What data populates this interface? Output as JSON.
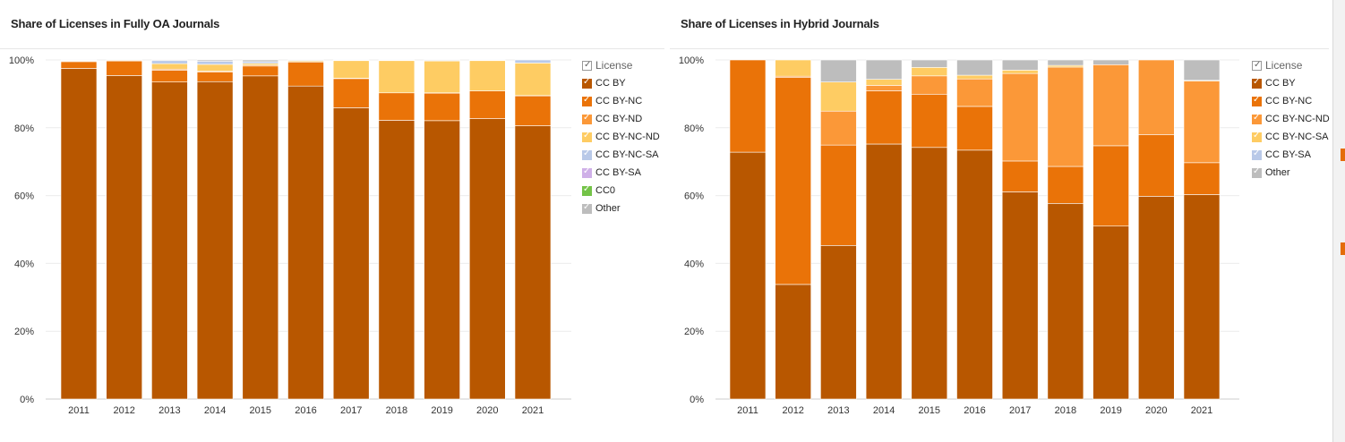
{
  "chart_data": [
    {
      "type": "bar",
      "stacked": true,
      "title": "Share of Licenses in Fully OA Journals",
      "categories": [
        "2011",
        "2012",
        "2013",
        "2014",
        "2015",
        "2016",
        "2017",
        "2018",
        "2019",
        "2020",
        "2021"
      ],
      "ylim": [
        0,
        100
      ],
      "yticks": [
        "0%",
        "20%",
        "40%",
        "60%",
        "80%",
        "100%"
      ],
      "grid": true,
      "legend_position": "right",
      "legend_title": "License",
      "series": [
        {
          "name": "CC BY",
          "color": "#b85700",
          "values": [
            97.5,
            95.4,
            93.5,
            93.6,
            95.3,
            92.3,
            85.9,
            82.2,
            82.1,
            82.7,
            80.6
          ]
        },
        {
          "name": "CC BY-NC",
          "color": "#ea7308",
          "values": [
            2.0,
            4.3,
            3.5,
            2.8,
            2.9,
            7.1,
            8.6,
            8.1,
            8.1,
            8.2,
            8.8
          ]
        },
        {
          "name": "CC BY-ND",
          "color": "#fb9838",
          "values": [
            0.2,
            0.2,
            0.3,
            0.3,
            0.3,
            0.1,
            0.1,
            0.0,
            0.1,
            0.0,
            0.1
          ]
        },
        {
          "name": "CC BY-NC-ND",
          "color": "#fecc63",
          "values": [
            0.1,
            0.0,
            1.6,
            2.0,
            0.5,
            0.3,
            5.2,
            9.5,
            9.4,
            8.9,
            9.6
          ]
        },
        {
          "name": "CC BY-NC-SA",
          "color": "#b9c9e8",
          "values": [
            0.1,
            0.0,
            0.9,
            0.9,
            0.5,
            0.0,
            0.1,
            0.1,
            0.1,
            0.1,
            0.9
          ]
        },
        {
          "name": "CC BY-SA",
          "color": "#cfb0e8",
          "values": [
            0.0,
            0.0,
            0.0,
            0.0,
            0.0,
            0.0,
            0.0,
            0.0,
            0.0,
            0.0,
            0.0
          ]
        },
        {
          "name": "CC0",
          "color": "#74c348",
          "values": [
            0.0,
            0.0,
            0.0,
            0.0,
            0.0,
            0.0,
            0.0,
            0.0,
            0.0,
            0.0,
            0.0
          ]
        },
        {
          "name": "Other",
          "color": "#bdbdbd",
          "values": [
            0.1,
            0.1,
            0.2,
            0.4,
            0.5,
            0.2,
            0.1,
            0.1,
            0.2,
            0.1,
            0.0
          ]
        }
      ]
    },
    {
      "type": "bar",
      "stacked": true,
      "title": "Share of Licenses in Hybrid Journals",
      "categories": [
        "2011",
        "2012",
        "2013",
        "2014",
        "2015",
        "2016",
        "2017",
        "2018",
        "2019",
        "2020",
        "2021"
      ],
      "ylim": [
        0,
        100
      ],
      "yticks": [
        "0%",
        "20%",
        "40%",
        "60%",
        "80%",
        "100%"
      ],
      "grid": true,
      "legend_position": "right",
      "legend_title": "License",
      "series": [
        {
          "name": "CC BY",
          "color": "#b85700",
          "values": [
            72.8,
            33.8,
            45.3,
            75.2,
            74.2,
            73.4,
            61.1,
            57.7,
            51.0,
            59.8,
            60.3
          ]
        },
        {
          "name": "CC BY-NC",
          "color": "#ea7308",
          "values": [
            27.2,
            61.0,
            29.6,
            15.7,
            15.7,
            12.9,
            9.1,
            10.9,
            23.7,
            18.2,
            9.4
          ]
        },
        {
          "name": "CC BY-NC-ND",
          "color": "#fb9838",
          "values": [
            0.0,
            0.4,
            10.0,
            1.6,
            5.4,
            8.1,
            25.8,
            29.3,
            23.9,
            22.0,
            24.1
          ]
        },
        {
          "name": "CC BY-NC-SA",
          "color": "#fecc63",
          "values": [
            0.0,
            4.8,
            8.6,
            1.8,
            2.5,
            1.1,
            1.0,
            0.5,
            0.0,
            0.0,
            0.2
          ]
        },
        {
          "name": "CC BY-SA",
          "color": "#b9c9e8",
          "values": [
            0.0,
            0.0,
            0.0,
            0.0,
            0.0,
            0.0,
            0.0,
            0.0,
            0.0,
            0.0,
            0.0
          ]
        },
        {
          "name": "Other",
          "color": "#bdbdbd",
          "values": [
            0.0,
            0.0,
            6.5,
            5.7,
            2.2,
            4.5,
            3.0,
            1.6,
            1.4,
            0.0,
            6.0
          ]
        }
      ]
    }
  ]
}
